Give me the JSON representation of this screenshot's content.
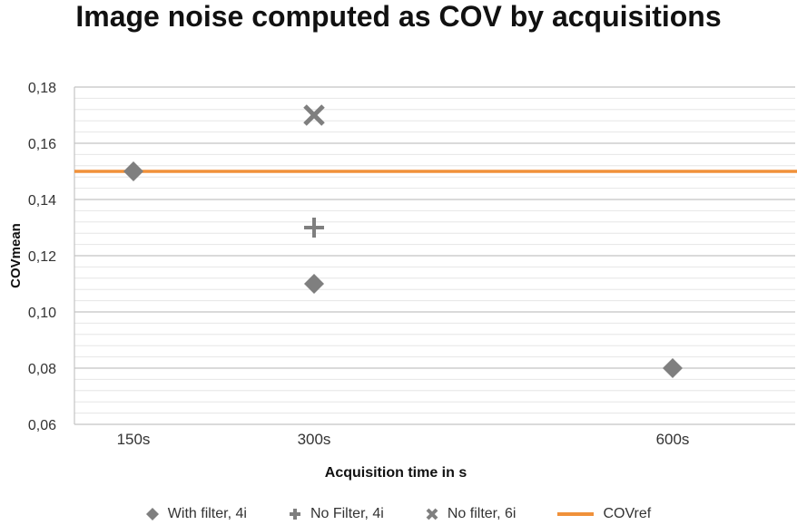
{
  "chart_data": {
    "type": "scatter",
    "title": "Image noise computed as COV by acquisitions",
    "xlabel": "Acquisition time in s",
    "ylabel": "COVmean",
    "categories": [
      "150s",
      "300s",
      "600s"
    ],
    "ylim": [
      0.06,
      0.18
    ],
    "yticks": [
      "0,06",
      "0,08",
      "0,10",
      "0,12",
      "0,14",
      "0,16",
      "0,18"
    ],
    "series": [
      {
        "name": "With filter, 4i",
        "marker": "diamond",
        "color": "#7f7f7f",
        "points": [
          {
            "x": "150s",
            "y": 0.15
          },
          {
            "x": "300s",
            "y": 0.11
          },
          {
            "x": "600s",
            "y": 0.08
          }
        ]
      },
      {
        "name": "No Filter, 4i",
        "marker": "plus",
        "color": "#7f7f7f",
        "points": [
          {
            "x": "300s",
            "y": 0.13
          }
        ]
      },
      {
        "name": "No filter, 6i",
        "marker": "x",
        "color": "#7f7f7f",
        "points": [
          {
            "x": "300s",
            "y": 0.17
          }
        ]
      },
      {
        "name": "COVref",
        "marker": "line",
        "color": "#f0913a",
        "value": 0.15
      }
    ],
    "grid": true,
    "legend_position": "bottom"
  }
}
